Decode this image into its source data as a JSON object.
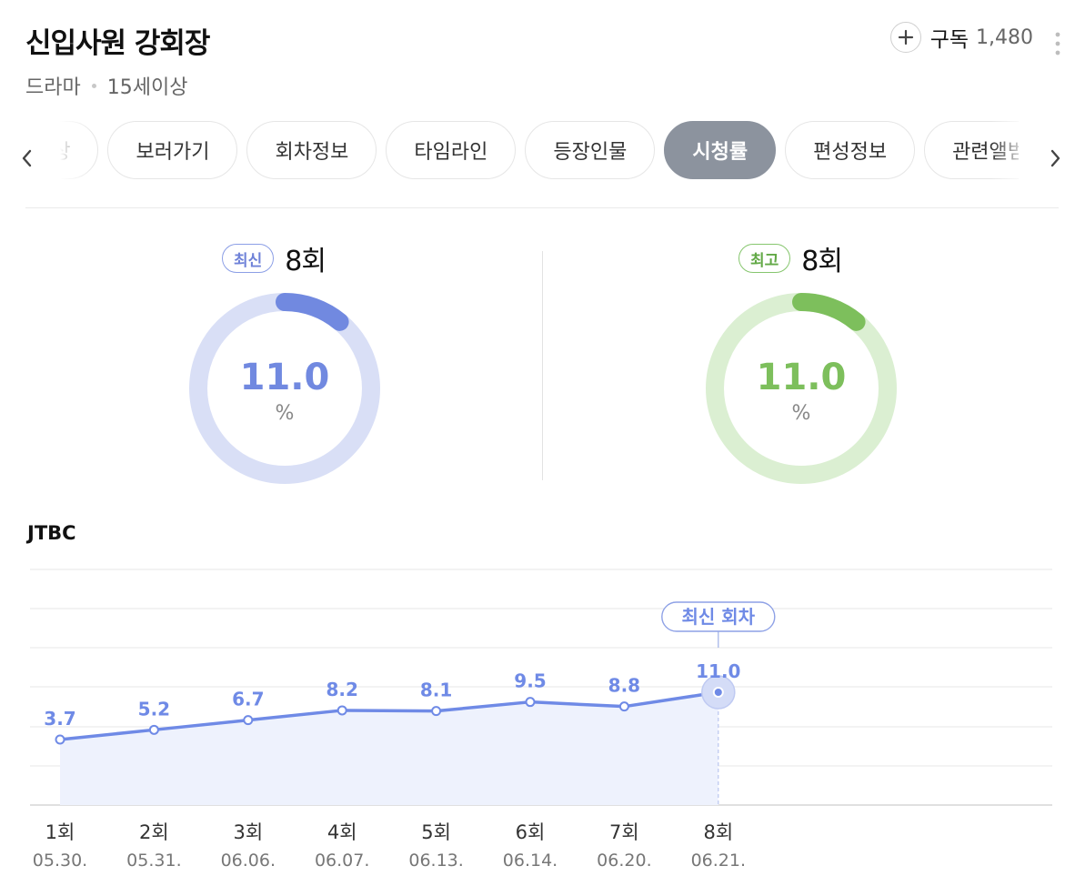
{
  "header": {
    "title": "신입사원 강회장",
    "genre": "드라마",
    "rating": "15세이상",
    "subscribe_label": "구독",
    "subscribe_count": "1,480"
  },
  "tabs": [
    {
      "label": "영상",
      "active": false
    },
    {
      "label": "보러가기",
      "active": false
    },
    {
      "label": "회차정보",
      "active": false
    },
    {
      "label": "타임라인",
      "active": false
    },
    {
      "label": "등장인물",
      "active": false
    },
    {
      "label": "시청률",
      "active": true
    },
    {
      "label": "편성정보",
      "active": false
    },
    {
      "label": "관련앨범",
      "active": false
    }
  ],
  "latest": {
    "badge": "최신",
    "episode": "8회",
    "value": "11.0",
    "unit": "%",
    "ratio": 0.11,
    "color": "#7189e0",
    "track": "#d9dff6"
  },
  "best": {
    "badge": "최고",
    "episode": "8회",
    "value": "11.0",
    "unit": "%",
    "ratio": 0.11,
    "color": "#7dbf5c",
    "track": "#dbefd2"
  },
  "network": "JTBC",
  "chart_data": {
    "type": "line",
    "categories": [
      "1회",
      "2회",
      "3회",
      "4회",
      "5회",
      "6회",
      "7회",
      "8회"
    ],
    "dates": [
      "05.30.",
      "05.31.",
      "06.06.",
      "06.07.",
      "06.13.",
      "06.14.",
      "06.20.",
      "06.21."
    ],
    "values": [
      3.7,
      5.2,
      6.7,
      8.2,
      8.1,
      9.5,
      8.8,
      11.0
    ],
    "labels": [
      "3.7",
      "5.2",
      "6.7",
      "8.2",
      "8.1",
      "9.5",
      "8.8",
      "11.0"
    ],
    "highlight_label": "최신 회차",
    "grid": true,
    "color": "#6f8ae6"
  }
}
